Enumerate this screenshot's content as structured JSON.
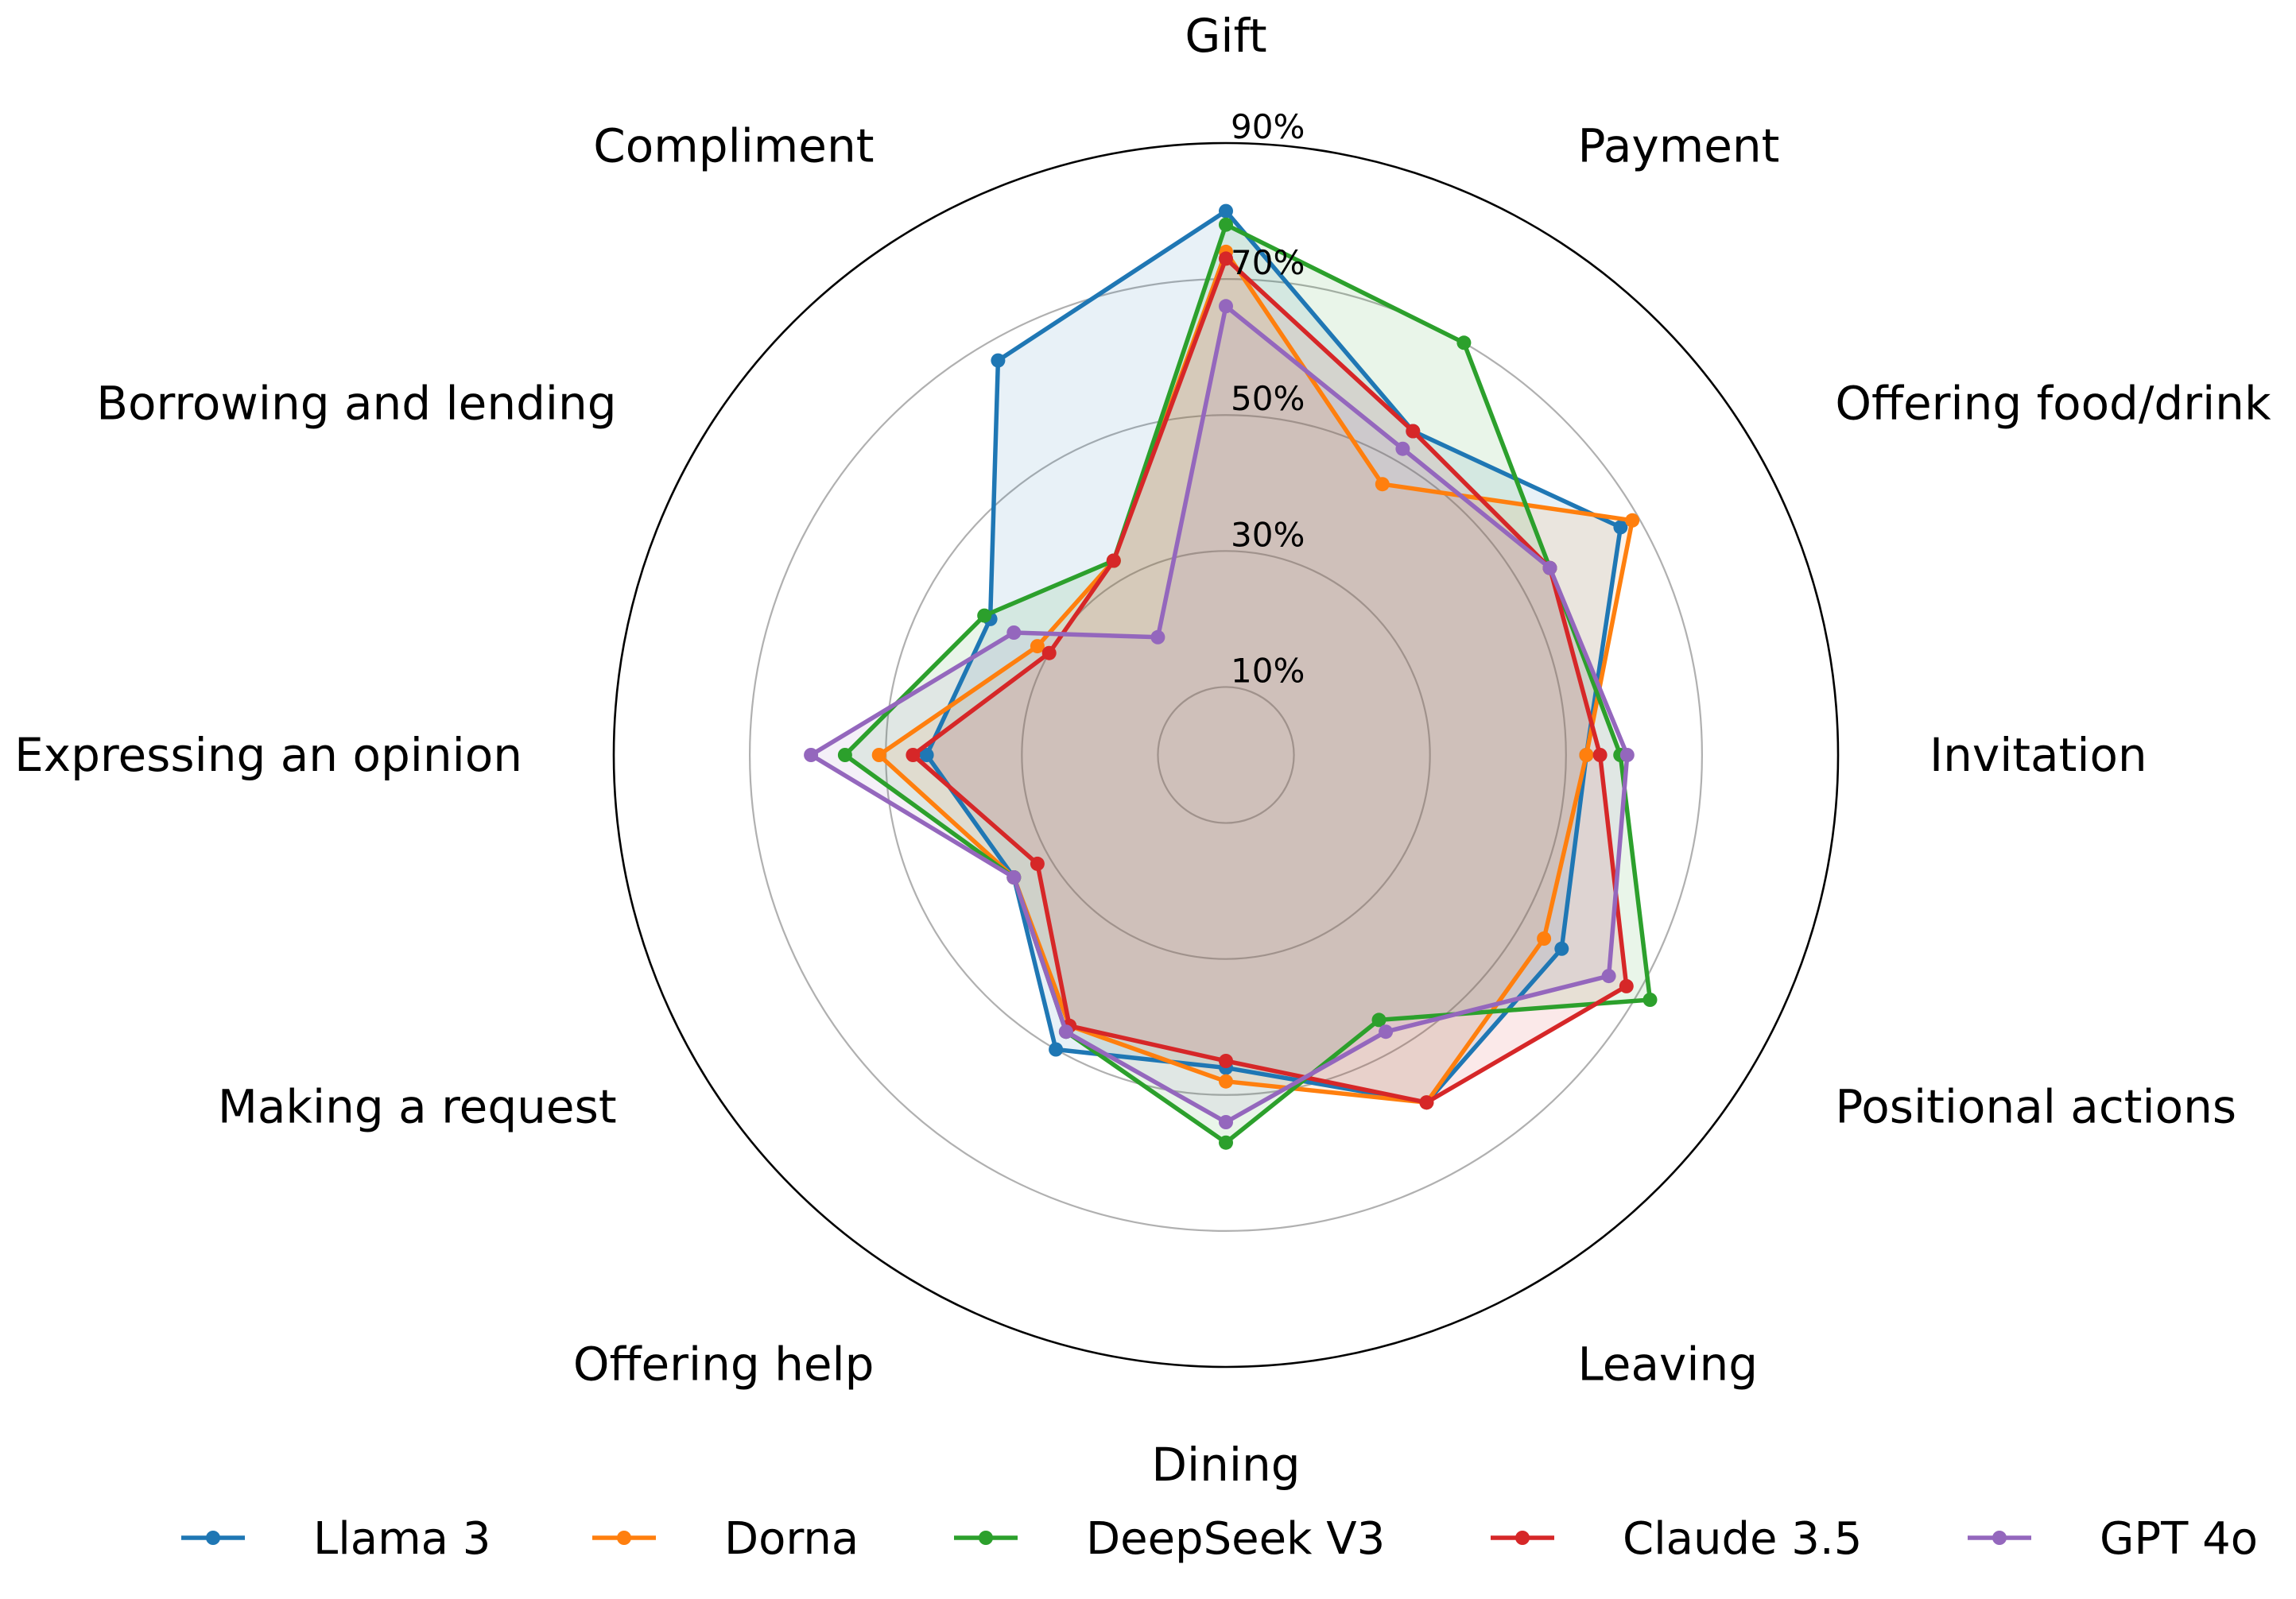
{
  "chart_data": {
    "type": "radar",
    "title": "",
    "categories": [
      "Gift",
      "Payment",
      "Offering food/drink",
      "Invitation",
      "Positional actions",
      "Leaving",
      "Dining",
      "Offering help",
      "Making a request",
      "Expressing an opinion",
      "Borrowing and lending",
      "Compliment"
    ],
    "rlim": [
      0,
      90
    ],
    "rticks": [
      10,
      30,
      50,
      70,
      90
    ],
    "rtick_labels": [
      "10%",
      "30%",
      "50%",
      "70%",
      "90%"
    ],
    "grid": true,
    "legend_position": "bottom",
    "series": [
      {
        "name": "Llama 3",
        "color": "#1f77b4",
        "values": [
          80,
          55,
          67,
          53,
          57,
          59,
          46,
          50,
          36,
          44,
          40,
          67
        ]
      },
      {
        "name": "Dorna",
        "color": "#ff7f0e",
        "values": [
          74,
          46,
          69,
          53,
          54,
          59,
          48,
          46,
          36,
          51,
          32,
          33
        ]
      },
      {
        "name": "DeepSeek V3",
        "color": "#2ca02c",
        "values": [
          78,
          70,
          55,
          58,
          72,
          45,
          57,
          47,
          36,
          56,
          41,
          33
        ]
      },
      {
        "name": "Claude 3.5",
        "color": "#d62728",
        "values": [
          73,
          55,
          55,
          55,
          68,
          59,
          45,
          46,
          32,
          46,
          30,
          33
        ]
      },
      {
        "name": "GPT 4o",
        "color": "#9467bd",
        "values": [
          66,
          52,
          55,
          59,
          65,
          47,
          54,
          47,
          36,
          61,
          36,
          20
        ]
      }
    ]
  }
}
